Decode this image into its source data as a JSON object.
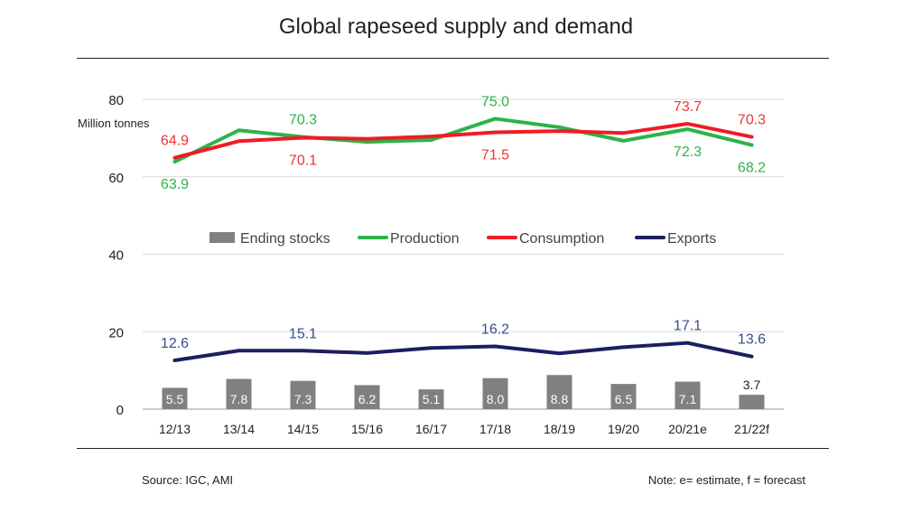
{
  "title": "Global rapeseed supply and demand",
  "source": "Source: IGC, AMI",
  "note": "Note: e= estimate, f = forecast",
  "colors": {
    "production": "#2db34a",
    "consumption": "#ee1c24",
    "exports": "#1b1f5e",
    "stocks": "#808080",
    "grid": "#d9d9d9",
    "production_label": "#2db34a",
    "consumption_label": "#ee3333",
    "exports_label": "#3a4a8c"
  },
  "chart_data": {
    "type": "bar",
    "title": "Global rapeseed supply and demand",
    "ylabel": "Million tonnes",
    "xlabel": "",
    "ylim": [
      0,
      80
    ],
    "yticks": [
      0,
      20,
      40,
      60,
      80
    ],
    "grid": true,
    "legend": "center",
    "categories": [
      "12/13",
      "13/14",
      "14/15",
      "15/16",
      "16/17",
      "17/18",
      "18/19",
      "19/20",
      "20/21e",
      "21/22f"
    ],
    "series": [
      {
        "name": "Ending stocks",
        "type": "bar",
        "values": [
          5.5,
          7.8,
          7.3,
          6.2,
          5.1,
          8.0,
          8.8,
          6.5,
          7.1,
          3.7
        ],
        "labels": [
          "5.5",
          "7.8",
          "7.3",
          "6.2",
          "5.1",
          "8.0",
          "8.8",
          "6.5",
          "7.1",
          "3.7"
        ]
      },
      {
        "name": "Production",
        "type": "line",
        "values": [
          63.9,
          72.0,
          70.3,
          69.0,
          69.5,
          75.0,
          72.8,
          69.3,
          72.3,
          68.2
        ],
        "labels": [
          "63.9",
          "",
          "70.3",
          "",
          "",
          "75.0",
          "",
          "",
          "72.3",
          "68.2"
        ]
      },
      {
        "name": "Consumption",
        "type": "line",
        "values": [
          64.9,
          69.2,
          70.1,
          69.8,
          70.4,
          71.5,
          71.8,
          71.3,
          73.7,
          70.3
        ],
        "labels": [
          "64.9",
          "",
          "70.1",
          "",
          "",
          "71.5",
          "",
          "",
          "73.7",
          "70.3"
        ]
      },
      {
        "name": "Exports",
        "type": "line",
        "values": [
          12.6,
          15.1,
          15.1,
          14.5,
          15.8,
          16.2,
          14.4,
          16.0,
          17.1,
          13.6
        ],
        "labels": [
          "12.6",
          "",
          "15.1",
          "",
          "",
          "16.2",
          "",
          "",
          "17.1",
          "13.6"
        ]
      }
    ]
  }
}
